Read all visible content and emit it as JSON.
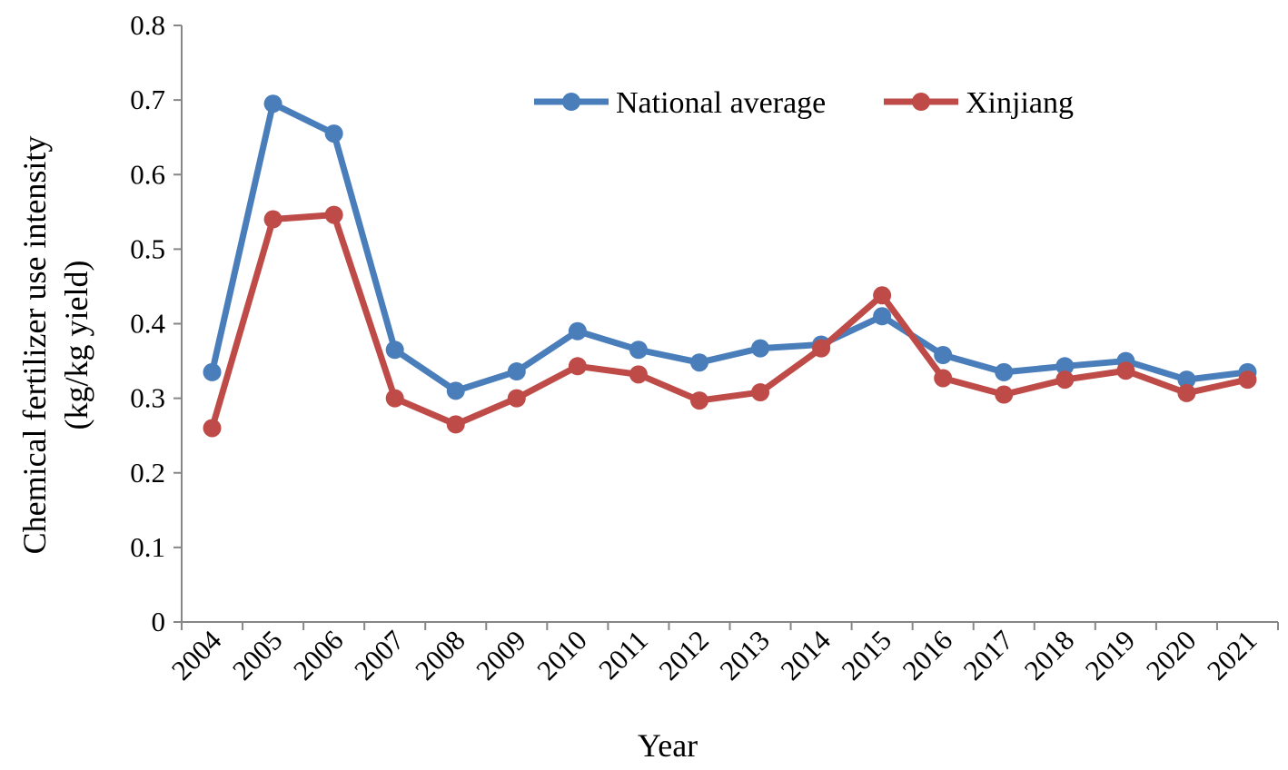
{
  "chart_data": {
    "type": "line",
    "title": "",
    "xlabel": "Year",
    "ylabel_line1": "Chemical fertilizer use intensity",
    "ylabel_line2": "(kg/kg yield)",
    "ylim": [
      0,
      0.8
    ],
    "yticks": [
      "0",
      "0.1",
      "0.2",
      "0.3",
      "0.4",
      "0.5",
      "0.6",
      "0.7",
      "0.8"
    ],
    "grid": false,
    "legend_position": "top-right",
    "categories": [
      "2004",
      "2005",
      "2006",
      "2007",
      "2008",
      "2009",
      "2010",
      "2011",
      "2012",
      "2013",
      "2014",
      "2015",
      "2016",
      "2017",
      "2018",
      "2019",
      "2020",
      "2021"
    ],
    "series": [
      {
        "name": "National average",
        "color": "#4a7ebb",
        "values": [
          0.335,
          0.695,
          0.655,
          0.365,
          0.31,
          0.336,
          0.39,
          0.365,
          0.348,
          0.367,
          0.372,
          0.41,
          0.358,
          0.335,
          0.343,
          0.35,
          0.325,
          0.335
        ]
      },
      {
        "name": "Xinjiang",
        "color": "#be4b48",
        "values": [
          0.26,
          0.54,
          0.546,
          0.3,
          0.265,
          0.3,
          0.343,
          0.332,
          0.297,
          0.308,
          0.367,
          0.438,
          0.327,
          0.305,
          0.325,
          0.337,
          0.307,
          0.325
        ]
      }
    ]
  }
}
